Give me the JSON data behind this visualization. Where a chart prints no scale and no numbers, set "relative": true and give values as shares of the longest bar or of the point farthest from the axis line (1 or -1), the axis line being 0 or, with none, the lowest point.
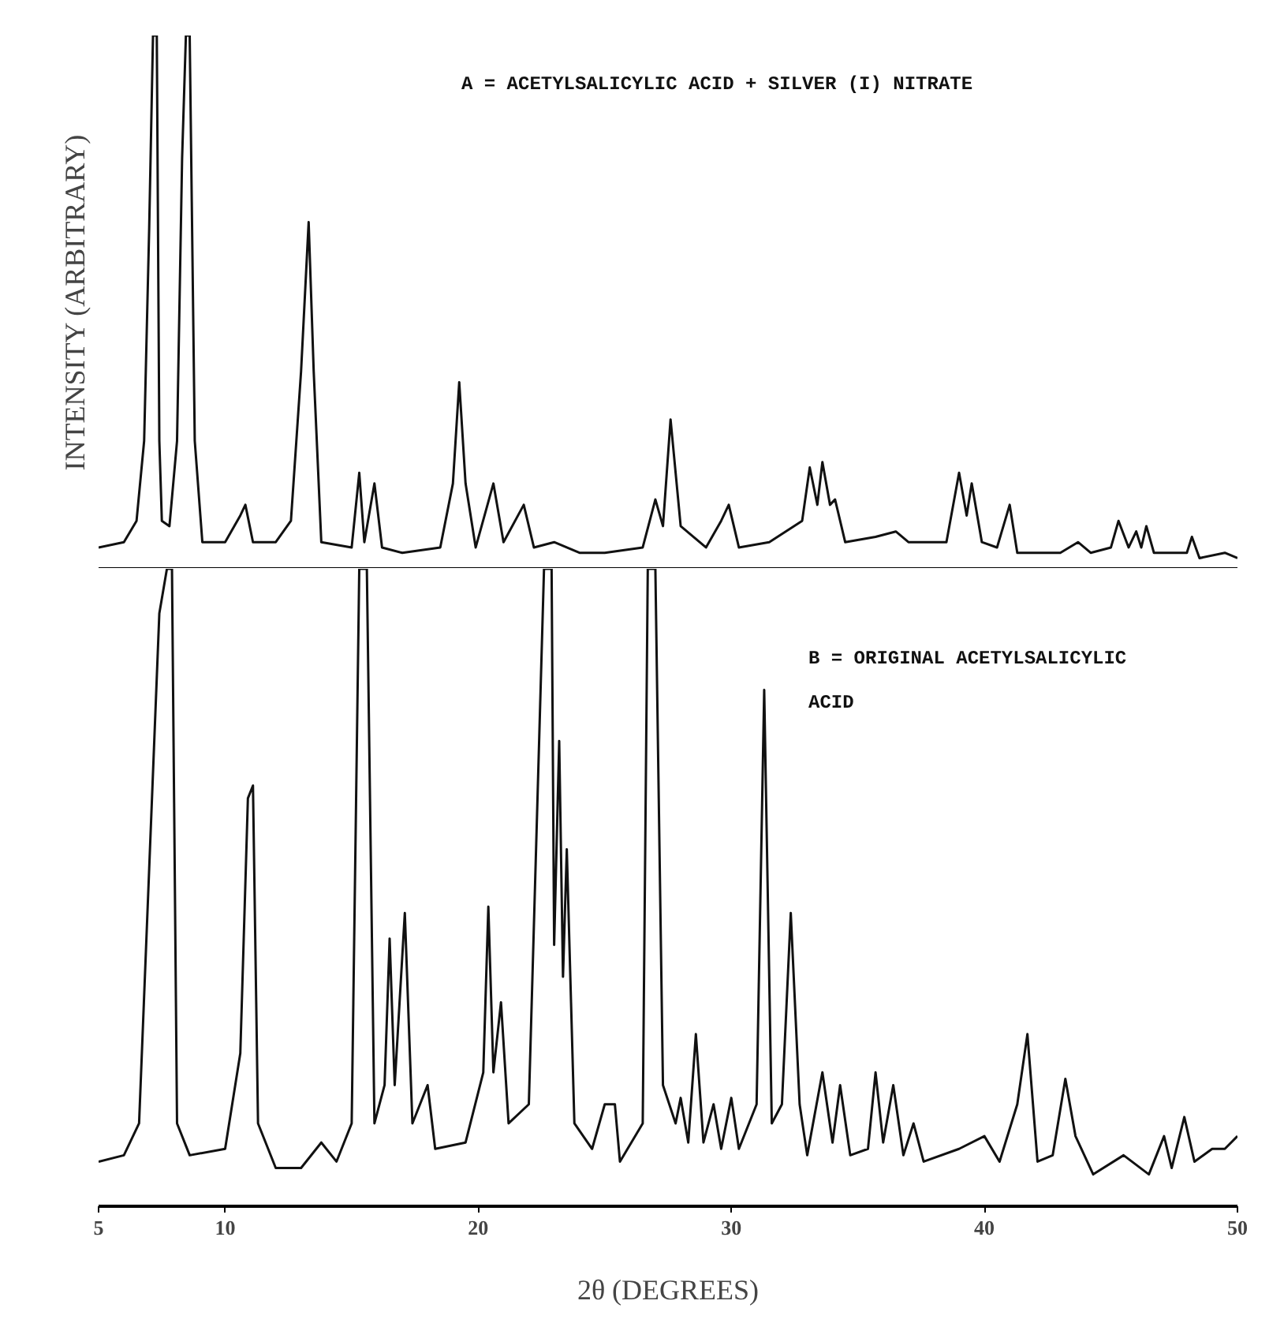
{
  "chart_data": [
    {
      "type": "line",
      "relative": true,
      "ylabel": "INTENSITY (ARBITRARY)",
      "tick_labels": false,
      "grid": false,
      "xlim": [
        5,
        50
      ],
      "annotations": [
        "A = ACETYLSALICYLIC ACID + SILVER (I) NITRATE"
      ],
      "series": [
        {
          "color": "#111111",
          "x": [
            5.0,
            6.0,
            6.5,
            6.8,
            7.0,
            7.15,
            7.3,
            7.4,
            7.5,
            7.8,
            8.1,
            8.3,
            8.45,
            8.6,
            8.8,
            9.1,
            10.0,
            10.6,
            10.8,
            11.1,
            12.0,
            12.6,
            13.0,
            13.3,
            13.5,
            13.8,
            15.0,
            15.3,
            15.5,
            15.9,
            16.2,
            17.0,
            18.5,
            19.0,
            19.25,
            19.5,
            19.9,
            20.6,
            21.0,
            21.8,
            22.2,
            23.0,
            24.0,
            25.0,
            26.5,
            27.0,
            27.3,
            27.6,
            28.0,
            29.0,
            29.6,
            29.9,
            30.3,
            31.5,
            32.8,
            33.1,
            33.4,
            33.6,
            33.9,
            34.1,
            34.5,
            35.7,
            36.5,
            37.0,
            38.5,
            39.0,
            39.3,
            39.5,
            39.9,
            40.5,
            41.0,
            41.3,
            43.0,
            43.7,
            44.2,
            45.0,
            45.3,
            45.7,
            46.0,
            46.2,
            46.4,
            46.7,
            48.0,
            48.2,
            48.5,
            49.5,
            50.0
          ],
          "values": [
            0.04,
            0.05,
            0.09,
            0.24,
            0.64,
            1,
            1,
            0.24,
            0.09,
            0.08,
            0.24,
            0.77,
            1,
            1,
            0.24,
            0.05,
            0.05,
            0.1,
            0.12,
            0.05,
            0.05,
            0.09,
            0.37,
            0.65,
            0.37,
            0.05,
            0.04,
            0.18,
            0.05,
            0.16,
            0.04,
            0.03,
            0.04,
            0.16,
            0.35,
            0.16,
            0.04,
            0.16,
            0.05,
            0.12,
            0.04,
            0.05,
            0.03,
            0.03,
            0.04,
            0.13,
            0.08,
            0.28,
            0.08,
            0.04,
            0.09,
            0.12,
            0.04,
            0.05,
            0.09,
            0.19,
            0.12,
            0.2,
            0.12,
            0.13,
            0.05,
            0.06,
            0.07,
            0.05,
            0.05,
            0.18,
            0.1,
            0.16,
            0.05,
            0.04,
            0.12,
            0.03,
            0.03,
            0.05,
            0.03,
            0.04,
            0.09,
            0.04,
            0.07,
            0.04,
            0.08,
            0.03,
            0.03,
            0.06,
            0.02,
            0.03,
            0.02
          ]
        }
      ]
    },
    {
      "type": "line",
      "relative": true,
      "xlabel": "2θ (DEGREES)",
      "tick_labels": "x",
      "grid": false,
      "xlim": [
        5,
        50
      ],
      "xticks": [
        5,
        10,
        20,
        30,
        40,
        50
      ],
      "annotations": [
        "B = ORIGINAL ACETYLSALICYLIC",
        "ACID"
      ],
      "series": [
        {
          "color": "#111111",
          "x": [
            5.0,
            6.0,
            6.6,
            7.0,
            7.4,
            7.7,
            7.9,
            8.1,
            8.6,
            10.0,
            10.6,
            10.9,
            11.1,
            11.3,
            12.0,
            13.0,
            13.8,
            14.4,
            15.0,
            15.3,
            15.6,
            15.9,
            16.3,
            16.5,
            16.7,
            17.1,
            17.4,
            18.0,
            18.3,
            19.5,
            20.2,
            20.4,
            20.6,
            20.9,
            21.2,
            22.0,
            22.6,
            22.9,
            23.0,
            23.2,
            23.35,
            23.5,
            23.8,
            24.5,
            25.0,
            25.4,
            25.6,
            26.5,
            26.7,
            27.0,
            27.3,
            27.8,
            28.0,
            28.3,
            28.6,
            28.9,
            29.3,
            29.6,
            30.0,
            30.3,
            31.0,
            31.3,
            31.6,
            32.0,
            32.35,
            32.7,
            33.0,
            33.6,
            34.0,
            34.3,
            34.7,
            35.4,
            35.7,
            36.0,
            36.4,
            36.8,
            37.2,
            37.6,
            39.0,
            40.0,
            40.6,
            41.3,
            41.7,
            42.1,
            42.7,
            43.2,
            43.6,
            44.3,
            45.5,
            46.5,
            47.1,
            47.4,
            47.9,
            48.3,
            49.0,
            49.5,
            50.0
          ],
          "values": [
            0.07,
            0.08,
            0.13,
            0.53,
            0.93,
            1,
            1,
            0.13,
            0.08,
            0.09,
            0.24,
            0.64,
            0.66,
            0.13,
            0.06,
            0.06,
            0.1,
            0.07,
            0.13,
            1,
            1,
            0.13,
            0.19,
            0.42,
            0.19,
            0.46,
            0.13,
            0.19,
            0.09,
            0.1,
            0.21,
            0.47,
            0.21,
            0.32,
            0.13,
            0.16,
            1,
            1,
            0.41,
            0.73,
            0.36,
            0.56,
            0.13,
            0.09,
            0.16,
            0.16,
            0.07,
            0.13,
            1,
            1,
            0.19,
            0.13,
            0.17,
            0.1,
            0.27,
            0.1,
            0.16,
            0.09,
            0.17,
            0.09,
            0.16,
            0.81,
            0.13,
            0.16,
            0.46,
            0.16,
            0.08,
            0.21,
            0.1,
            0.19,
            0.08,
            0.09,
            0.21,
            0.1,
            0.19,
            0.08,
            0.13,
            0.07,
            0.09,
            0.11,
            0.07,
            0.16,
            0.27,
            0.07,
            0.08,
            0.2,
            0.11,
            0.05,
            0.08,
            0.05,
            0.11,
            0.06,
            0.14,
            0.07,
            0.09,
            0.09,
            0.11
          ]
        }
      ]
    }
  ]
}
